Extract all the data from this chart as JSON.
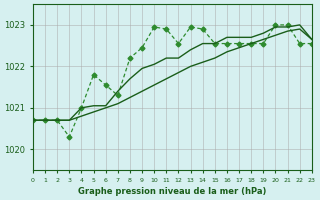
{
  "title": "Graphe pression niveau de la mer (hPa)",
  "bg_color": "#d6f0f0",
  "grid_color": "#aaaaaa",
  "line_color_dark": "#1a5e1a",
  "line_color_medium": "#2e8b2e",
  "xlim": [
    0,
    23
  ],
  "ylim": [
    1019.5,
    1023.5
  ],
  "yticks": [
    1020,
    1021,
    1022,
    1023
  ],
  "xticks": [
    0,
    1,
    2,
    3,
    4,
    5,
    6,
    7,
    8,
    9,
    10,
    11,
    12,
    13,
    14,
    15,
    16,
    17,
    18,
    19,
    20,
    21,
    22,
    23
  ],
  "series1_x": [
    0,
    1,
    2,
    3,
    4,
    5,
    6,
    7,
    8,
    9,
    10,
    11,
    12,
    13,
    14,
    15,
    16,
    17,
    18,
    19,
    20,
    21,
    22,
    23
  ],
  "series1_y": [
    1020.7,
    1020.7,
    1020.7,
    1020.3,
    1021.0,
    1021.8,
    1021.55,
    1021.3,
    1022.2,
    1022.45,
    1022.95,
    1022.9,
    1022.55,
    1022.95,
    1022.9,
    1022.55,
    1022.55,
    1022.55,
    1022.55,
    1022.55,
    1023.0,
    1023.0,
    1022.55,
    1022.55
  ],
  "series2_x": [
    0,
    1,
    2,
    3,
    4,
    5,
    6,
    7,
    8,
    9,
    10,
    11,
    12,
    13,
    14,
    15,
    16,
    17,
    18,
    19,
    20,
    21,
    22,
    23
  ],
  "series2_y": [
    1020.7,
    1020.7,
    1020.7,
    1020.7,
    1021.0,
    1021.05,
    1021.05,
    1021.4,
    1021.7,
    1021.95,
    1022.05,
    1022.2,
    1022.2,
    1022.4,
    1022.55,
    1022.55,
    1022.7,
    1022.7,
    1022.7,
    1022.8,
    1022.95,
    1022.95,
    1023.0,
    1022.65
  ],
  "series3_x": [
    0,
    1,
    2,
    3,
    4,
    5,
    6,
    7,
    8,
    9,
    10,
    11,
    12,
    13,
    14,
    15,
    16,
    17,
    18,
    19,
    20,
    21,
    22,
    23
  ],
  "series3_y": [
    1020.7,
    1020.7,
    1020.7,
    1020.7,
    1020.8,
    1020.9,
    1021.0,
    1021.1,
    1021.25,
    1021.4,
    1021.55,
    1021.7,
    1021.85,
    1022.0,
    1022.1,
    1022.2,
    1022.35,
    1022.45,
    1022.55,
    1022.65,
    1022.75,
    1022.85,
    1022.9,
    1022.65
  ]
}
